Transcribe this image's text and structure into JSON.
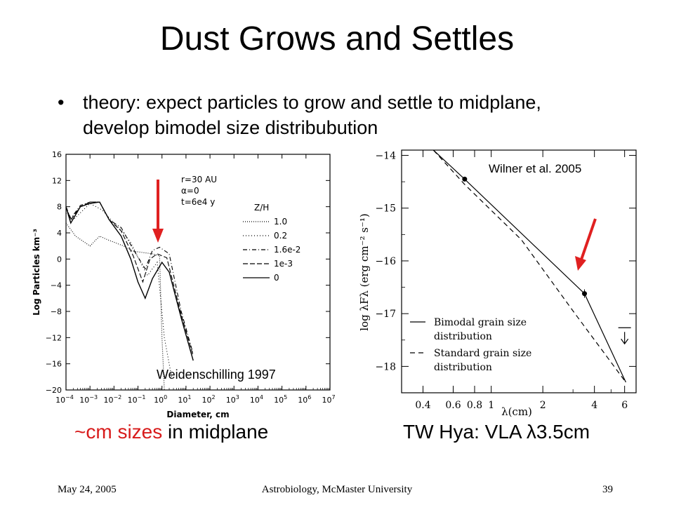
{
  "slide": {
    "title": "Dust Grows and Settles",
    "bullet": "theory: expect particles to grow and settle to midplane, develop bimodel size distribubution",
    "caption_left_red": "~cm sizes",
    "caption_left_rest": " in midplane",
    "caption_right": "TW Hya: VLA λ3.5cm",
    "footer_date": "May 24, 2005",
    "footer_center": "Astrobiology, McMaster University",
    "footer_page": "39"
  },
  "colors": {
    "arrow": "#e02020",
    "text": "#000000",
    "highlight": "#d81b1b"
  },
  "chart_data": [
    {
      "type": "line",
      "credit": "Weidenschilling 1997",
      "xlabel": "Diameter, cm",
      "ylabel": "Log Particles km⁻³",
      "x_scale": "log",
      "xlim_log10": [
        -4,
        7
      ],
      "ylim": [
        -20,
        16
      ],
      "x_ticks_exp": [
        -4,
        -3,
        -2,
        -1,
        0,
        1,
        2,
        3,
        4,
        5,
        6,
        7
      ],
      "y_ticks": [
        16,
        12,
        8,
        4,
        0,
        -4,
        -8,
        -12,
        -16,
        -20
      ],
      "params": [
        "r=30 AU",
        "α=0",
        "t=6e4 y"
      ],
      "legend_title": "Z/H",
      "series": [
        {
          "name": "1.0",
          "dash": "1 2",
          "x_log10": [
            -4,
            -3.6,
            -3,
            -2.6,
            -2.3,
            -1.6,
            -1.2,
            -0.8,
            -0.4,
            -0.1,
            0,
            0.1
          ],
          "y": [
            5.5,
            3.5,
            2,
            3.5,
            3,
            2,
            1.2,
            1,
            0.8,
            0.5,
            -12,
            -20
          ]
        },
        {
          "name": "0.2",
          "dash": "1 3",
          "x_log10": [
            -4,
            -3.7,
            -3,
            -2.5,
            -2,
            -1.6,
            -1.3,
            -0.9,
            -0.6,
            -0.2,
            0.1,
            0.4
          ],
          "y": [
            7,
            6,
            8.5,
            7.5,
            5.5,
            4,
            2.5,
            -0.5,
            -2.5,
            -0.5,
            -12,
            -18
          ]
        },
        {
          "name": "1.6e-2",
          "dash": "6 3 1 3",
          "x_log10": [
            -4,
            -3.8,
            -3.4,
            -3,
            -2.6,
            -2.2,
            -1.7,
            -1.2,
            -0.7,
            -0.4,
            -0.1,
            0.3,
            0.8,
            1.3
          ],
          "y": [
            8,
            6.2,
            8.2,
            8.7,
            8.7,
            6,
            4.8,
            1.5,
            -1.5,
            1.3,
            1.8,
            0.8,
            -8,
            -14.5
          ]
        },
        {
          "name": "1e-3",
          "dash": "7 3",
          "x_log10": [
            -4,
            -3.8,
            -3.4,
            -3,
            -2.6,
            -2.2,
            -1.7,
            -1.2,
            -0.8,
            -0.5,
            -0.2,
            0.2,
            0.8,
            1.3
          ],
          "y": [
            8,
            6,
            8,
            8.7,
            8.7,
            6,
            4.3,
            0.5,
            -3.5,
            0,
            0.8,
            0.2,
            -8.5,
            -14.8
          ]
        },
        {
          "name": "0",
          "dash": "",
          "x_log10": [
            -4,
            -3.8,
            -3.4,
            -3,
            -2.6,
            -2.2,
            -1.7,
            -1.3,
            -1,
            -0.7,
            -0.4,
            0,
            0.3,
            0.8,
            1.3
          ],
          "y": [
            8,
            5.5,
            8,
            8.5,
            8.7,
            6,
            3.5,
            0,
            -3.5,
            -6,
            -3,
            -0.5,
            -2,
            -9,
            -15.5
          ]
        }
      ]
    },
    {
      "type": "line",
      "credit": "Wilner et al. 2005",
      "xlabel": "λ(cm)",
      "ylabel": "log λFλ (erg cm⁻² s⁻¹)",
      "x_scale": "log",
      "xlim": [
        0.3,
        7
      ],
      "ylim": [
        -18.5,
        -13.9
      ],
      "x_ticks": [
        0.4,
        0.6,
        0.8,
        1,
        2,
        4,
        6
      ],
      "x_tick_labels": [
        "0.4",
        "0.6",
        "0.8",
        "1",
        "2",
        "4",
        "6"
      ],
      "y_ticks": [
        -14,
        -15,
        -16,
        -17,
        -18
      ],
      "points": [
        {
          "x": 0.7,
          "y": -14.45
        },
        {
          "x": 3.5,
          "y": -16.62
        }
      ],
      "upper_limit": {
        "x": 6,
        "y": -17.4
      },
      "series": [
        {
          "name": "Bimodal grain size distribution",
          "dash": "",
          "x": [
            0.46,
            0.7,
            3.5,
            6.1
          ],
          "y": [
            -13.9,
            -14.45,
            -16.62,
            -18.3
          ]
        },
        {
          "name": "Standard grain size distribution",
          "dash": "7 5",
          "x": [
            0.46,
            0.7,
            1.5,
            3.0,
            6.1
          ],
          "y": [
            -13.9,
            -14.55,
            -15.6,
            -16.95,
            -18.3
          ]
        }
      ]
    }
  ]
}
